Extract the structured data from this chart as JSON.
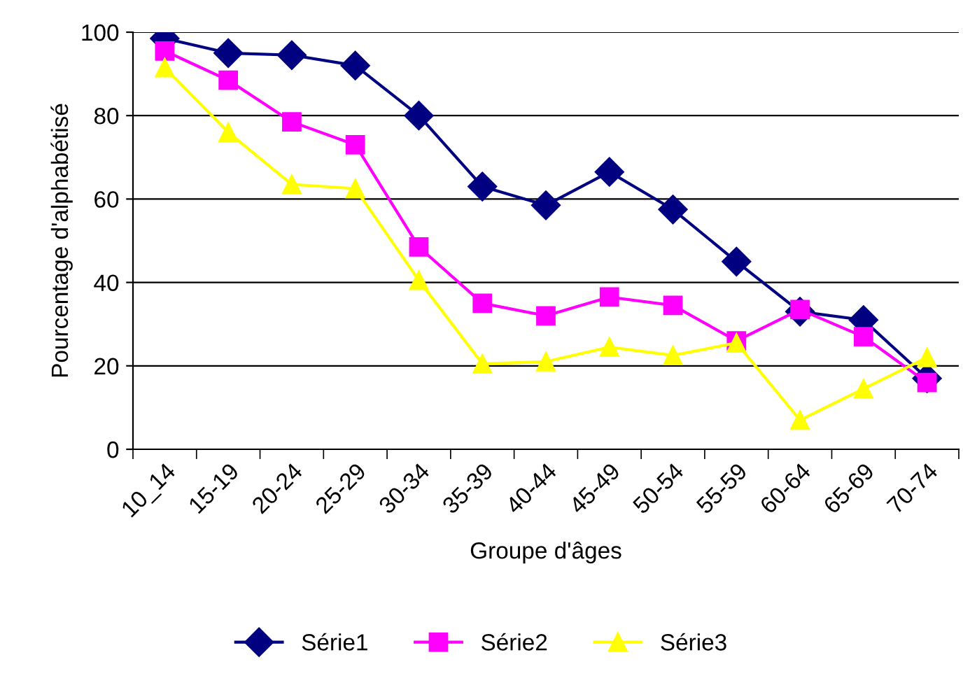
{
  "chart_data": {
    "type": "line",
    "xlabel": "Groupe d'âges",
    "ylabel": "Pourcentage d'alphabétisé",
    "categories": [
      "10_14",
      "15-19",
      "20-24",
      "25-29",
      "30-34",
      "35-39",
      "40-44",
      "45-49",
      "50-54",
      "55-59",
      "60-64",
      "65-69",
      "70-74"
    ],
    "series": [
      {
        "name": "Série1",
        "color": "#000080",
        "marker": "diamond",
        "values": [
          98.5,
          95,
          94.5,
          92,
          80,
          63,
          58.5,
          66.5,
          57.5,
          45,
          33,
          31,
          17
        ]
      },
      {
        "name": "Série2",
        "color": "#ff00ff",
        "marker": "square",
        "values": [
          95.5,
          88.5,
          78.5,
          73,
          48.5,
          35,
          32,
          36.5,
          34.5,
          26,
          33.5,
          27,
          16
        ]
      },
      {
        "name": "Série3",
        "color": "#ffff00",
        "marker": "triangle",
        "values": [
          91.5,
          76,
          63.5,
          62.5,
          40.5,
          20.5,
          21,
          24.5,
          22.5,
          25.5,
          7,
          14.5,
          22
        ]
      }
    ],
    "ylim": [
      0,
      100
    ],
    "yticks": [
      0,
      20,
      40,
      60,
      80,
      100
    ],
    "grid": "y",
    "legend": "bottom",
    "line_style": "solid"
  }
}
